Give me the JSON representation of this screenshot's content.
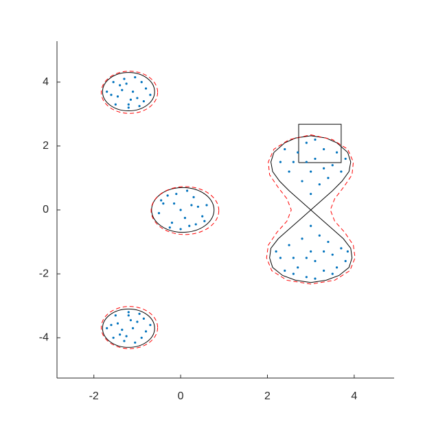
{
  "chart_data": {
    "type": "scatter",
    "xlim": [
      -2.85,
      4.92
    ],
    "ylim": [
      -5.26,
      5.28
    ],
    "xticks": [
      -2,
      0,
      2,
      4
    ],
    "yticks": [
      -4,
      -2,
      0,
      2,
      4
    ],
    "grid": false,
    "series": [
      {
        "color": "#0072bd",
        "x": [
          -1.6,
          -1.4,
          -1.0,
          -0.8,
          -1.2,
          -1.5,
          -1.3,
          -0.9,
          -1.1,
          -1.7,
          -0.7,
          -1.25,
          -1.45,
          -1.05,
          -0.95,
          -1.35,
          -1.15,
          -1.55,
          -0.85,
          -1.2,
          -1.6,
          -1.4,
          -1.0,
          -0.8,
          -1.2,
          -1.5,
          -1.3,
          -0.9,
          -1.1,
          -1.7,
          -0.7,
          -1.25,
          -1.45,
          -1.05,
          -0.95,
          -1.35,
          -1.15,
          -1.55,
          -0.85,
          -1.2,
          -0.4,
          -0.2,
          0.3,
          0.5,
          0.0,
          -0.5,
          0.2,
          0.4,
          -0.1,
          0.6,
          -0.3,
          0.1,
          0.35,
          -0.25,
          0.15,
          0.55,
          -0.45,
          0.0,
          0.25,
          -0.15,
          2.3,
          2.5,
          2.7,
          2.9,
          3.1,
          3.3,
          3.5,
          3.7,
          3.8,
          2.4,
          2.8,
          3.0,
          3.2,
          3.4,
          2.6,
          3.6,
          3.0,
          3.1,
          2.9,
          3.3,
          2.3,
          2.5,
          2.7,
          2.9,
          3.1,
          3.3,
          3.5,
          3.7,
          3.8,
          2.4,
          2.8,
          3.0,
          3.2,
          3.4,
          2.6,
          3.6,
          3.0,
          3.1,
          2.9,
          3.3,
          2.2,
          3.85,
          3.5,
          2.6
        ],
        "y": [
          3.6,
          3.9,
          3.5,
          3.8,
          3.3,
          3.3,
          4.1,
          4.0,
          3.7,
          3.7,
          3.6,
          3.95,
          3.55,
          4.15,
          3.25,
          3.75,
          3.45,
          4.0,
          3.4,
          3.2,
          -3.6,
          -3.9,
          -3.5,
          -3.8,
          -3.3,
          -3.3,
          -4.1,
          -4.0,
          -3.7,
          -3.7,
          -3.6,
          -3.95,
          -3.55,
          -4.15,
          -3.25,
          -3.75,
          -3.45,
          -4.0,
          -3.4,
          -3.2,
          0.2,
          -0.4,
          0.4,
          -0.2,
          0.0,
          -0.1,
          -0.5,
          0.1,
          0.5,
          0.15,
          0.45,
          -0.25,
          -0.45,
          -0.55,
          0.6,
          -0.35,
          0.3,
          -0.6,
          0.15,
          0.2,
          1.5,
          1.2,
          1.8,
          2.1,
          1.6,
          1.9,
          1.4,
          1.2,
          1.6,
          1.9,
          0.9,
          1.2,
          0.8,
          1.0,
          1.5,
          1.8,
          0.5,
          2.2,
          1.5,
          1.3,
          -1.5,
          -1.1,
          -1.8,
          -2.1,
          -1.6,
          -1.9,
          -1.4,
          -1.2,
          -1.6,
          -1.9,
          -0.9,
          -1.3,
          -0.8,
          -1.0,
          -1.5,
          -1.8,
          -0.5,
          -2.15,
          -1.5,
          -1.3,
          -1.3,
          -1.3,
          -2.0,
          -2.0
        ]
      }
    ],
    "ellipses": [
      {
        "cx": -1.2,
        "cy": 3.7,
        "rx": 0.6,
        "ry": 0.6,
        "color": "#000000",
        "dashed": false
      },
      {
        "cx": 0.05,
        "cy": 0,
        "rx": 0.72,
        "ry": 0.7,
        "color": "#000000",
        "dashed": false
      },
      {
        "cx": -1.2,
        "cy": -3.7,
        "rx": 0.6,
        "ry": 0.6,
        "color": "#000000",
        "dashed": false
      },
      {
        "cx": -1.18,
        "cy": 3.68,
        "rx": 0.65,
        "ry": 0.66,
        "color": "#ff0000",
        "dashed": true
      },
      {
        "cx": 0.1,
        "cy": -0.02,
        "rx": 0.78,
        "ry": 0.75,
        "color": "#ff0000",
        "dashed": true
      },
      {
        "cx": -1.18,
        "cy": -3.68,
        "rx": 0.65,
        "ry": 0.66,
        "color": "#ff0000",
        "dashed": true
      }
    ],
    "curves": [
      {
        "color": "#000000",
        "dashed": false,
        "x": [
          3,
          3.25,
          3.5,
          3.72,
          3.88,
          3.92,
          3.85,
          3.6,
          3.35,
          3,
          2.65,
          2.4,
          2.15,
          2.08,
          2.12,
          2.28,
          2.5,
          2.75,
          3,
          3.25,
          3.5,
          3.75,
          3.92,
          3.95,
          3.88,
          3.65,
          3.35,
          3,
          2.65,
          2.35,
          2.12,
          2.05,
          2.08,
          2.25,
          2.5,
          2.75,
          3
        ],
        "y": [
          0,
          0.3,
          0.6,
          0.9,
          1.2,
          1.5,
          1.8,
          2.1,
          2.25,
          2.32,
          2.25,
          2.1,
          1.8,
          1.5,
          1.2,
          0.9,
          0.6,
          0.3,
          0,
          -0.3,
          -0.6,
          -0.9,
          -1.2,
          -1.5,
          -1.8,
          -2.05,
          -2.2,
          -2.27,
          -2.2,
          -2.05,
          -1.8,
          -1.5,
          -1.2,
          -0.9,
          -0.6,
          -0.3,
          0
        ]
      },
      {
        "color": "#ff0000",
        "dashed": true,
        "x": [
          3,
          3.5,
          3.85,
          3.98,
          3.95,
          3.75,
          3.55,
          3.45,
          3.55,
          3.78,
          3.98,
          4.02,
          3.9,
          3.55,
          3,
          2.45,
          2.1,
          1.98,
          2.02,
          2.22,
          2.45,
          2.55,
          2.45,
          2.25,
          2.05,
          2.02,
          2.15,
          2.5,
          3
        ],
        "y": [
          2.35,
          2.2,
          1.9,
          1.5,
          1.1,
          0.7,
          0.35,
          0,
          -0.35,
          -0.7,
          -1.1,
          -1.5,
          -1.9,
          -2.2,
          -2.32,
          -2.2,
          -1.9,
          -1.5,
          -1.1,
          -0.7,
          -0.35,
          0,
          0.35,
          0.7,
          1.1,
          1.5,
          1.9,
          2.2,
          2.35
        ]
      },
      {
        "color": "#000000",
        "dashed": false,
        "x": [
          2.72,
          3.7,
          3.7,
          2.72,
          2.72
        ],
        "y": [
          1.48,
          1.48,
          2.68,
          2.68,
          1.48
        ]
      }
    ]
  }
}
